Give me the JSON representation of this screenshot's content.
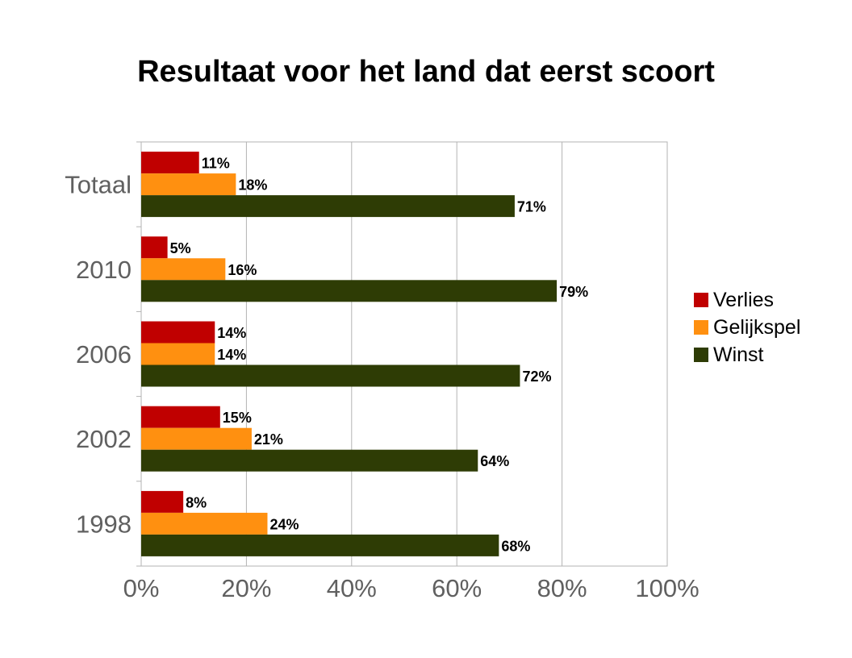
{
  "chart_data": {
    "type": "bar",
    "orientation": "horizontal",
    "title": "Resultaat voor het land dat eerst scoort",
    "categories": [
      "Totaal",
      "2010",
      "2006",
      "2002",
      "1998"
    ],
    "series": [
      {
        "name": "Verlies",
        "color": "#c00000",
        "values": [
          11,
          5,
          14,
          15,
          8
        ]
      },
      {
        "name": "Gelijkspel",
        "color": "#ff9010",
        "values": [
          18,
          16,
          14,
          21,
          24
        ]
      },
      {
        "name": "Winst",
        "color": "#2e3c05",
        "values": [
          71,
          79,
          72,
          64,
          68
        ]
      }
    ],
    "data_labels": [
      [
        "11%",
        "5%",
        "14%",
        "15%",
        "8%"
      ],
      [
        "18%",
        "16%",
        "14%",
        "21%",
        "24%"
      ],
      [
        "71%",
        "79%",
        "72%",
        "64%",
        "68%"
      ]
    ],
    "xlim": [
      0,
      100
    ],
    "x_ticks": [
      0,
      20,
      40,
      60,
      80,
      100
    ],
    "x_tick_labels": [
      "0%",
      "20%",
      "40%",
      "60%",
      "80%",
      "100%"
    ],
    "grid": "vertical",
    "legend_position": "right"
  }
}
